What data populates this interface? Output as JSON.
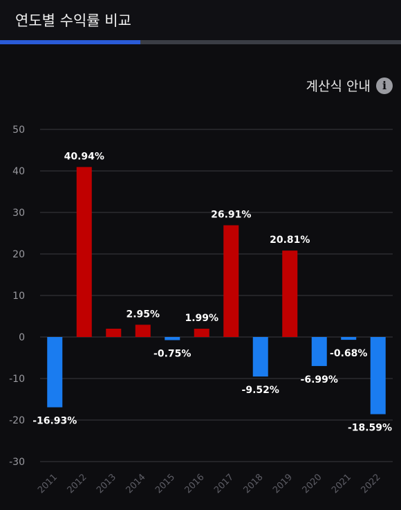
{
  "header": {
    "title": "연도별 수익률 비교"
  },
  "progress": {
    "fraction": 0.35
  },
  "calc_guide": {
    "label": "계산식 안내",
    "icon": "info-icon"
  },
  "colors": {
    "positive": "#c00000",
    "negative": "#1a7cf0",
    "grid": "#3a3a40",
    "progress": "#2a5bd7"
  },
  "chart_data": {
    "type": "bar",
    "categories": [
      "2011",
      "2012",
      "2013",
      "2014",
      "2015",
      "2016",
      "2017",
      "2018",
      "2019",
      "2020",
      "2021",
      "2022"
    ],
    "values": [
      -16.93,
      40.94,
      2.0,
      2.95,
      -0.75,
      1.99,
      26.91,
      -9.52,
      20.81,
      -6.99,
      -0.68,
      -18.59
    ],
    "data_labels": [
      "-16.93%",
      "40.94%",
      "",
      "2.95%",
      "-0.75%",
      "1.99%",
      "26.91%",
      "-9.52%",
      "20.81%",
      "-6.99%",
      "-0.68%",
      "-18.59%"
    ],
    "yticks": [
      "50",
      "40",
      "30",
      "20",
      "10",
      "0",
      "-10",
      "-20",
      "-30"
    ],
    "ylim": [
      -30,
      50
    ],
    "grid": true
  }
}
